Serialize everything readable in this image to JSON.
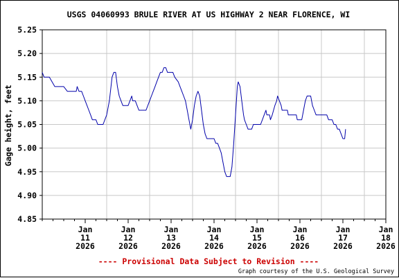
{
  "chart_data": {
    "type": "line",
    "title": "USGS 04060993 BRULE RIVER AT US HIGHWAY 2 NEAR FLORENCE, WI",
    "ylabel": "Gage height, feet",
    "xlabel": "",
    "ylim": [
      4.85,
      5.25
    ],
    "y_ticks": [
      "5.25",
      "5.20",
      "5.15",
      "5.10",
      "5.05",
      "5.00",
      "4.95",
      "4.90",
      "4.85"
    ],
    "x_ticks": [
      {
        "month": "Jan",
        "day": "11",
        "year": "2026"
      },
      {
        "month": "Jan",
        "day": "12",
        "year": "2026"
      },
      {
        "month": "Jan",
        "day": "13",
        "year": "2026"
      },
      {
        "month": "Jan",
        "day": "14",
        "year": "2026"
      },
      {
        "month": "Jan",
        "day": "15",
        "year": "2026"
      },
      {
        "month": "Jan",
        "day": "16",
        "year": "2026"
      },
      {
        "month": "Jan",
        "day": "17",
        "year": "2026"
      },
      {
        "month": "Jan",
        "day": "18",
        "year": "2026"
      }
    ],
    "xlim": [
      "2026-01-10 12:00",
      "2026-01-18 12:00"
    ],
    "grid": true,
    "line_color": "#0000aa",
    "series": [
      {
        "values": [
          [
            "2026-01-10 12:00",
            5.16
          ],
          [
            "2026-01-10 13:00",
            5.15
          ],
          [
            "2026-01-10 16:00",
            5.15
          ],
          [
            "2026-01-10 17:30",
            5.14
          ],
          [
            "2026-01-10 19:00",
            5.13
          ],
          [
            "2026-01-11 00:00",
            5.13
          ],
          [
            "2026-01-11 02:00",
            5.12
          ],
          [
            "2026-01-11 07:00",
            5.12
          ],
          [
            "2026-01-11 07:30",
            5.13
          ],
          [
            "2026-01-11 08:30",
            5.12
          ],
          [
            "2026-01-11 10:00",
            5.12
          ],
          [
            "2026-01-11 11:00",
            5.11
          ],
          [
            "2026-01-11 12:00",
            5.1
          ],
          [
            "2026-01-11 13:00",
            5.09
          ],
          [
            "2026-01-11 14:00",
            5.08
          ],
          [
            "2026-01-11 15:00",
            5.07
          ],
          [
            "2026-01-11 16:00",
            5.06
          ],
          [
            "2026-01-11 18:00",
            5.06
          ],
          [
            "2026-01-11 19:00",
            5.05
          ],
          [
            "2026-01-11 22:00",
            5.05
          ],
          [
            "2026-01-12 00:00",
            5.07
          ],
          [
            "2026-01-12 01:30",
            5.1
          ],
          [
            "2026-01-12 03:00",
            5.15
          ],
          [
            "2026-01-12 04:00",
            5.16
          ],
          [
            "2026-01-12 05:00",
            5.16
          ],
          [
            "2026-01-12 06:00",
            5.13
          ],
          [
            "2026-01-12 07:00",
            5.11
          ],
          [
            "2026-01-12 08:00",
            5.1
          ],
          [
            "2026-01-12 09:00",
            5.09
          ],
          [
            "2026-01-12 12:00",
            5.09
          ],
          [
            "2026-01-12 13:00",
            5.1
          ],
          [
            "2026-01-12 14:00",
            5.11
          ],
          [
            "2026-01-12 14:30",
            5.1
          ],
          [
            "2026-01-12 16:00",
            5.1
          ],
          [
            "2026-01-12 17:00",
            5.09
          ],
          [
            "2026-01-12 18:00",
            5.08
          ],
          [
            "2026-01-12 22:00",
            5.08
          ],
          [
            "2026-01-12 23:00",
            5.09
          ],
          [
            "2026-01-13 00:00",
            5.1
          ],
          [
            "2026-01-13 01:00",
            5.11
          ],
          [
            "2026-01-13 02:00",
            5.12
          ],
          [
            "2026-01-13 03:00",
            5.13
          ],
          [
            "2026-01-13 04:00",
            5.14
          ],
          [
            "2026-01-13 05:00",
            5.15
          ],
          [
            "2026-01-13 06:00",
            5.16
          ],
          [
            "2026-01-13 07:00",
            5.16
          ],
          [
            "2026-01-13 08:00",
            5.17
          ],
          [
            "2026-01-13 09:00",
            5.17
          ],
          [
            "2026-01-13 10:00",
            5.16
          ],
          [
            "2026-01-13 13:00",
            5.16
          ],
          [
            "2026-01-13 14:00",
            5.15
          ],
          [
            "2026-01-13 16:00",
            5.14
          ],
          [
            "2026-01-13 17:00",
            5.13
          ],
          [
            "2026-01-13 18:00",
            5.12
          ],
          [
            "2026-01-13 19:00",
            5.11
          ],
          [
            "2026-01-13 20:00",
            5.1
          ],
          [
            "2026-01-13 21:00",
            5.08
          ],
          [
            "2026-01-13 22:00",
            5.06
          ],
          [
            "2026-01-13 23:00",
            5.04
          ],
          [
            "2026-01-14 00:00",
            5.06
          ],
          [
            "2026-01-14 01:00",
            5.09
          ],
          [
            "2026-01-14 02:00",
            5.11
          ],
          [
            "2026-01-14 03:00",
            5.12
          ],
          [
            "2026-01-14 04:00",
            5.11
          ],
          [
            "2026-01-14 05:00",
            5.08
          ],
          [
            "2026-01-14 06:00",
            5.05
          ],
          [
            "2026-01-14 07:00",
            5.03
          ],
          [
            "2026-01-14 08:00",
            5.02
          ],
          [
            "2026-01-14 12:00",
            5.02
          ],
          [
            "2026-01-14 13:00",
            5.01
          ],
          [
            "2026-01-14 14:00",
            5.01
          ],
          [
            "2026-01-14 15:00",
            5.0
          ],
          [
            "2026-01-14 16:00",
            4.99
          ],
          [
            "2026-01-14 17:00",
            4.97
          ],
          [
            "2026-01-14 18:00",
            4.95
          ],
          [
            "2026-01-14 19:00",
            4.94
          ],
          [
            "2026-01-14 21:00",
            4.94
          ],
          [
            "2026-01-14 22:00",
            4.96
          ],
          [
            "2026-01-14 23:00",
            5.01
          ],
          [
            "2026-01-15 00:00",
            5.07
          ],
          [
            "2026-01-15 01:00",
            5.13
          ],
          [
            "2026-01-15 01:30",
            5.14
          ],
          [
            "2026-01-15 02:30",
            5.13
          ],
          [
            "2026-01-15 03:30",
            5.1
          ],
          [
            "2026-01-15 04:30",
            5.07
          ],
          [
            "2026-01-15 05:00",
            5.06
          ],
          [
            "2026-01-15 06:00",
            5.05
          ],
          [
            "2026-01-15 07:00",
            5.04
          ],
          [
            "2026-01-15 09:00",
            5.04
          ],
          [
            "2026-01-15 10:00",
            5.05
          ],
          [
            "2026-01-15 14:00",
            5.05
          ],
          [
            "2026-01-15 15:00",
            5.06
          ],
          [
            "2026-01-15 16:00",
            5.07
          ],
          [
            "2026-01-15 17:00",
            5.08
          ],
          [
            "2026-01-15 17:30",
            5.07
          ],
          [
            "2026-01-15 19:00",
            5.07
          ],
          [
            "2026-01-15 19:30",
            5.06
          ],
          [
            "2026-01-15 20:30",
            5.07
          ],
          [
            "2026-01-15 22:00",
            5.09
          ],
          [
            "2026-01-15 23:00",
            5.1
          ],
          [
            "2026-01-15 23:30",
            5.11
          ],
          [
            "2026-01-16 00:30",
            5.1
          ],
          [
            "2026-01-16 01:30",
            5.09
          ],
          [
            "2026-01-16 02:00",
            5.08
          ],
          [
            "2026-01-16 05:00",
            5.08
          ],
          [
            "2026-01-16 05:30",
            5.07
          ],
          [
            "2026-01-16 10:00",
            5.07
          ],
          [
            "2026-01-16 10:30",
            5.06
          ],
          [
            "2026-01-16 13:00",
            5.06
          ],
          [
            "2026-01-16 14:00",
            5.08
          ],
          [
            "2026-01-16 15:00",
            5.1
          ],
          [
            "2026-01-16 16:00",
            5.11
          ],
          [
            "2026-01-16 18:00",
            5.11
          ],
          [
            "2026-01-16 19:00",
            5.09
          ],
          [
            "2026-01-16 20:00",
            5.08
          ],
          [
            "2026-01-16 21:00",
            5.07
          ],
          [
            "2026-01-17 03:00",
            5.07
          ],
          [
            "2026-01-17 04:00",
            5.06
          ],
          [
            "2026-01-17 06:00",
            5.06
          ],
          [
            "2026-01-17 07:00",
            5.05
          ],
          [
            "2026-01-17 08:00",
            5.05
          ],
          [
            "2026-01-17 09:00",
            5.04
          ],
          [
            "2026-01-17 10:00",
            5.04
          ],
          [
            "2026-01-17 11:00",
            5.03
          ],
          [
            "2026-01-17 12:00",
            5.02
          ],
          [
            "2026-01-17 13:00",
            5.02
          ],
          [
            "2026-01-17 13:30",
            5.04
          ]
        ]
      }
    ],
    "footnote": "---- Provisional Data Subject to Revision ----",
    "credit": "Graph courtesy of the U.S. Geological Survey"
  }
}
